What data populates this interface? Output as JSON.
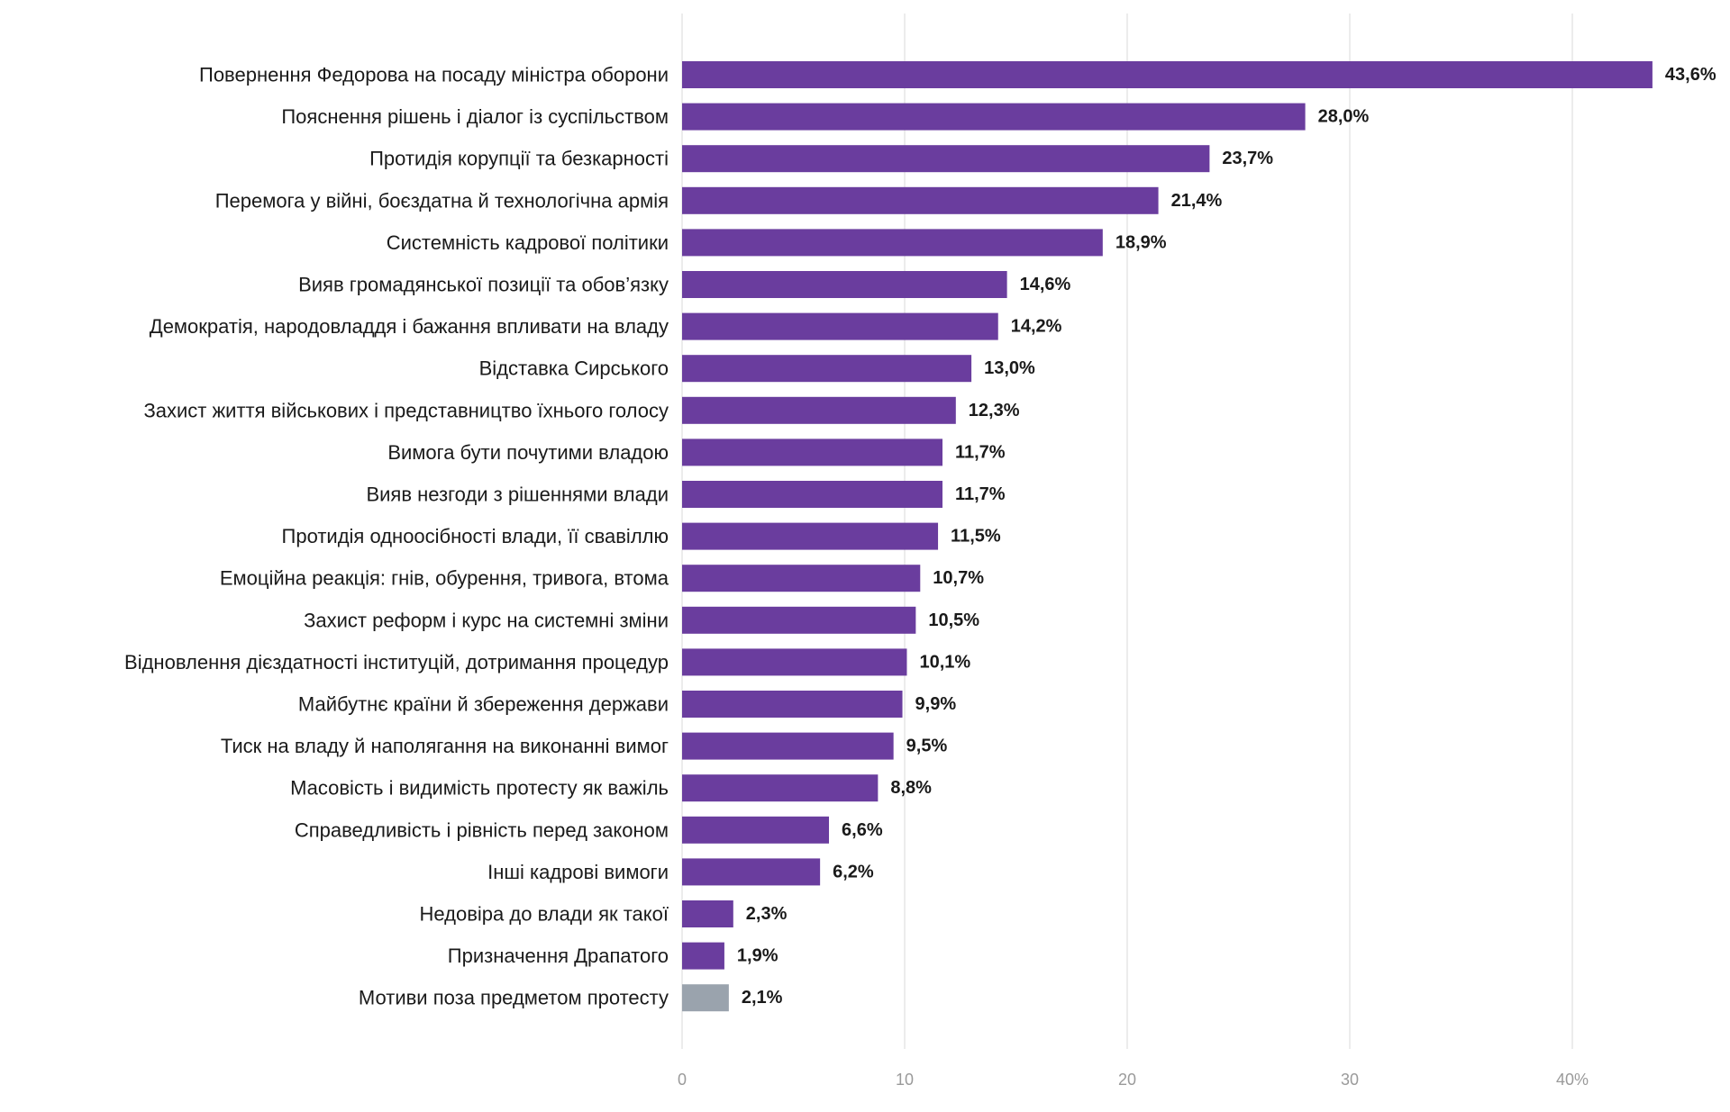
{
  "chart_data": {
    "type": "bar",
    "orientation": "horizontal",
    "categories": [
      "Повернення Федорова на посаду міністра оборони",
      "Пояснення рішень і діалог із суспільством",
      "Протидія корупції та безкарності",
      "Перемога у війні, боєздатна й технологічна армія",
      "Системність кадрової політики",
      "Вияв громадянської позиції та обов’язку",
      "Демократія, народовладдя і бажання впливати на владу",
      "Відставка Сирського",
      "Захист життя військових і представництво їхнього голосу",
      "Вимога бути почутими владою",
      "Вияв незгоди з рішеннями влади",
      "Протидія одноосібності влади, її свавіллю",
      "Емоційна реакція: гнів, обурення, тривога, втома",
      "Захист реформ і курс на системні зміни",
      "Відновлення дієздатності інституцій, дотримання процедур",
      "Майбутнє країни й збереження держави",
      "Тиск на владу й наполягання на виконанні вимог",
      "Масовість і видимість протесту як важіль",
      "Справедливість і рівність перед законом",
      "Інші кадрові вимоги",
      "Недовіра до влади як такої",
      "Призначення Драпатого",
      "Мотиви поза предметом протесту"
    ],
    "values": [
      43.6,
      28.0,
      23.7,
      21.4,
      18.9,
      14.6,
      14.2,
      13.0,
      12.3,
      11.7,
      11.7,
      11.5,
      10.7,
      10.5,
      10.1,
      9.9,
      9.5,
      8.8,
      6.6,
      6.2,
      2.3,
      1.9,
      2.1
    ],
    "value_labels": [
      "43,6%",
      "28,0%",
      "23,7%",
      "21,4%",
      "18,9%",
      "14,6%",
      "14,2%",
      "13,0%",
      "12,3%",
      "11,7%",
      "11,7%",
      "11,5%",
      "10,7%",
      "10,5%",
      "10,1%",
      "9,9%",
      "9,5%",
      "8,8%",
      "6,6%",
      "6,2%",
      "2,3%",
      "1,9%",
      "2,1%"
    ],
    "bar_colors": [
      "#6a3d9e",
      "#6a3d9e",
      "#6a3d9e",
      "#6a3d9e",
      "#6a3d9e",
      "#6a3d9e",
      "#6a3d9e",
      "#6a3d9e",
      "#6a3d9e",
      "#6a3d9e",
      "#6a3d9e",
      "#6a3d9e",
      "#6a3d9e",
      "#6a3d9e",
      "#6a3d9e",
      "#6a3d9e",
      "#6a3d9e",
      "#6a3d9e",
      "#6a3d9e",
      "#6a3d9e",
      "#6a3d9e",
      "#6a3d9e",
      "#9aa3ad"
    ],
    "xlim": [
      0,
      40
    ],
    "x_ticks": [
      0,
      10,
      20,
      30,
      40
    ],
    "x_tick_labels": [
      "0",
      "10",
      "20",
      "30",
      "40%"
    ],
    "grid": "vertical",
    "legend": "none",
    "title": "",
    "xlabel": "",
    "ylabel": ""
  }
}
